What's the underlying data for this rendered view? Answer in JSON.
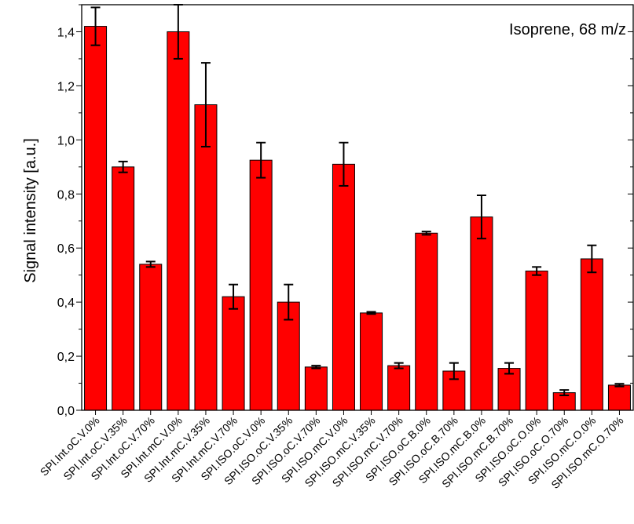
{
  "chart_data": {
    "type": "bar",
    "annotation": "Isoprene, 68 m/z",
    "xlabel": "",
    "ylabel": "Signal intensity [a.u.]",
    "ylim": [
      0.0,
      1.5
    ],
    "yticks": [
      "0,0",
      "0,2",
      "0,4",
      "0,6",
      "0,8",
      "1,0",
      "1,2",
      "1,4"
    ],
    "ytick_values": [
      0.0,
      0.2,
      0.4,
      0.6,
      0.8,
      1.0,
      1.2,
      1.4
    ],
    "grid": false,
    "colors": {
      "bar": "#ff0000",
      "axis": "#000000"
    },
    "categories": [
      "SPI.Int.oC.V.0%",
      "SPI.Int.oC.V.35%",
      "SPI.Int.oC.V.70%",
      "SPI.Int.mC.V.0%",
      "SPI.Int.mC.V.35%",
      "SPI.Int.mC.V.70%",
      "SPI.ISO.oC.V.0%",
      "SPI.ISO.oC.V.35%",
      "SPI.ISO.oC.V.70%",
      "SPI.ISO.mC.V.0%",
      "SPI.ISO.mC.V.35%",
      "SPI.ISO.mC.V.70%",
      "SPI.ISO.oC.B.0%",
      "SPI.ISO.oC.B.70%",
      "SPI.ISO.mC.B.0%",
      "SPI.ISO.mC.B.70%",
      "SPI.ISO.oC.O.0%",
      "SPI.ISO.oC.O.70%",
      "SPI.ISO.mC.O.0%",
      "SPI.ISO.mC.O.70%"
    ],
    "values": [
      1.42,
      0.9,
      0.54,
      1.4,
      1.13,
      0.42,
      0.925,
      0.4,
      0.16,
      0.91,
      0.36,
      0.165,
      0.655,
      0.145,
      0.715,
      0.155,
      0.515,
      0.065,
      0.56,
      0.093
    ],
    "errors": [
      0.07,
      0.02,
      0.01,
      0.1,
      0.155,
      0.045,
      0.065,
      0.065,
      0.005,
      0.08,
      0.004,
      0.01,
      0.006,
      0.03,
      0.08,
      0.02,
      0.015,
      0.01,
      0.05,
      0.005
    ]
  }
}
